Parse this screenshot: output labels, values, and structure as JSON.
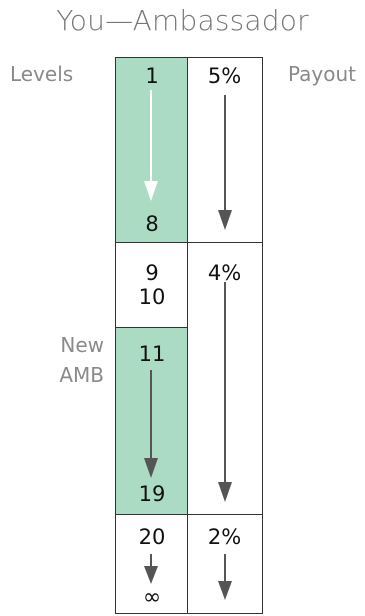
{
  "title": "You—Ambassador",
  "labels": {
    "levels": "Levels",
    "payout": "Payout",
    "new_amb_line1": "New",
    "new_amb_line2": "AMB"
  },
  "levels_column": {
    "block1": {
      "start": "1",
      "end": "8",
      "color": "#abdbc3"
    },
    "block2": {
      "line1": "9",
      "line2": "10",
      "color": "#ffffff"
    },
    "block3": {
      "start": "11",
      "end": "19",
      "color": "#abdbc3"
    },
    "block4": {
      "start": "20",
      "end": "∞",
      "color": "#ffffff"
    }
  },
  "payout_column": {
    "tier1": {
      "percent": "5%"
    },
    "tier2": {
      "percent": "4%"
    },
    "tier3": {
      "percent": "2%"
    }
  },
  "colors": {
    "highlight": "#abdbc3",
    "border": "#333333",
    "arrow_dark": "#555555",
    "arrow_light": "#ffffff"
  }
}
